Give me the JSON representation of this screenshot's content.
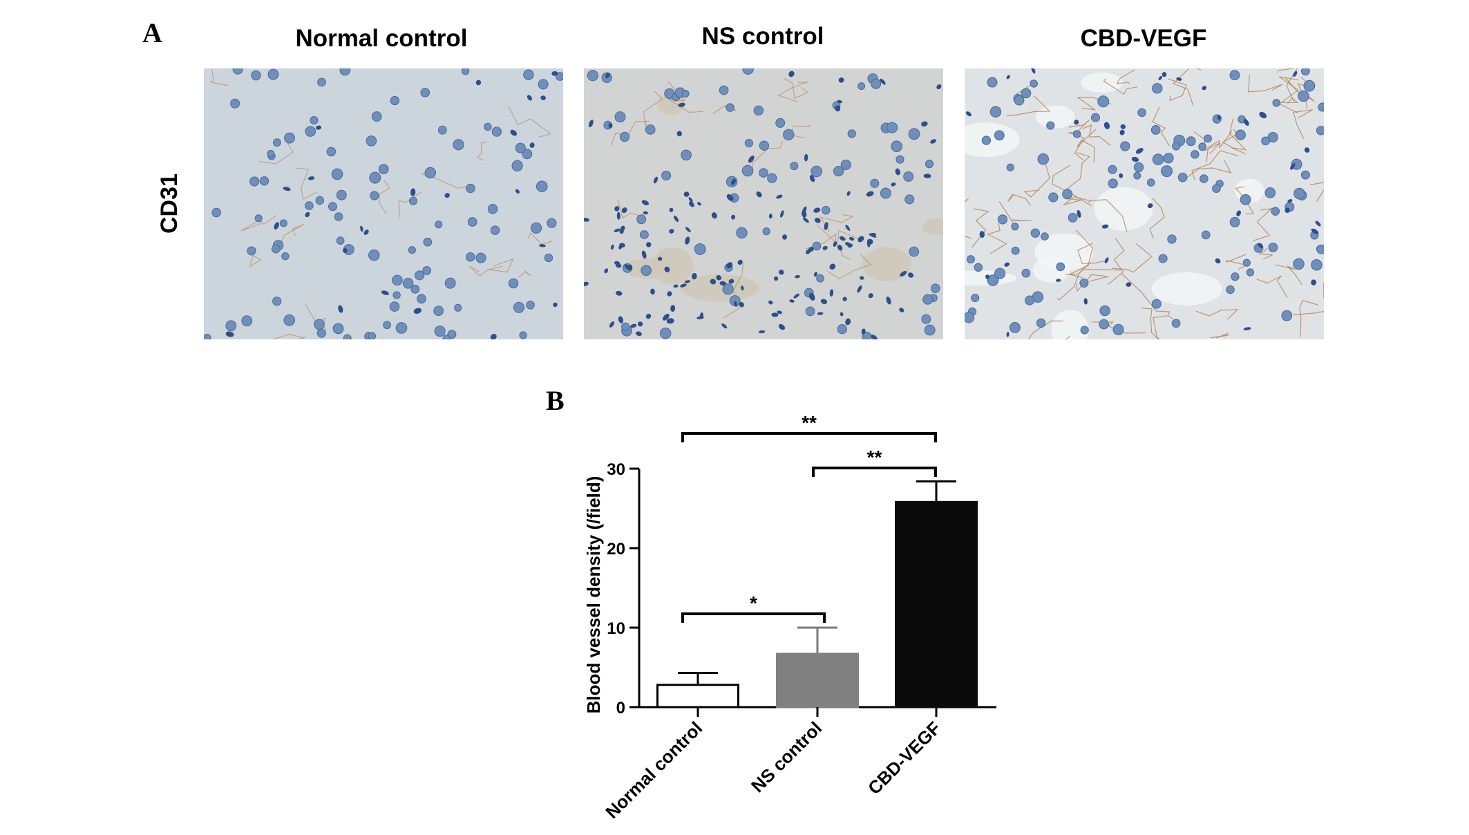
{
  "panel_a": {
    "letter": "A",
    "row_label": "CD31",
    "columns": [
      {
        "title": "Normal control",
        "stain": "normal"
      },
      {
        "title": "NS control",
        "stain": "ns"
      },
      {
        "title": "CBD-VEGF",
        "stain": "vegf"
      }
    ]
  },
  "panel_b": {
    "letter": "B"
  },
  "chart_data": {
    "type": "bar",
    "categories": [
      "Normal control",
      "NS control",
      "CBD-VEGF"
    ],
    "values": [
      2.8,
      6.7,
      25.8
    ],
    "errors": [
      1.5,
      3.3,
      2.6
    ],
    "colors": [
      "#ffffff",
      "#808080",
      "#0a0a0a"
    ],
    "ylabel": "Blood vessel density (/field)",
    "ylim": [
      0,
      30
    ],
    "yticks": [
      0,
      10,
      20,
      30
    ],
    "significance": [
      {
        "from": 0,
        "to": 1,
        "label": "*"
      },
      {
        "from": 1,
        "to": 2,
        "label": "**"
      },
      {
        "from": 0,
        "to": 2,
        "label": "**"
      }
    ]
  }
}
